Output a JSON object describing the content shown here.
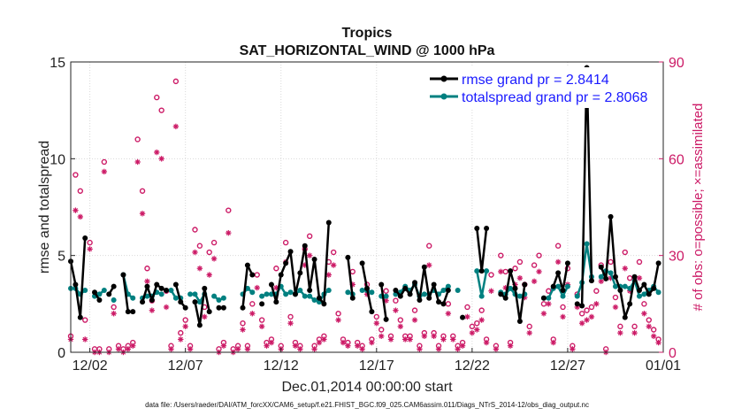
{
  "chart_data": {
    "type": "line",
    "title": "Tropics",
    "subtitle": "SAT_HORIZONTAL_WIND @ 1000 hPa",
    "xlabel": "Dec.01,2014 00:00:00 start",
    "ylabel": "rmse and totalspread",
    "y2label": "# of obs: o=possible; ×=assimilated",
    "footnote": "data file: /Users/raeder/DAI/ATM_forcXX/CAM6_setup/f.e21.FHIST_BGC.f09_025.CAM6assim.011/Diags_NTrS_2014-12/obs_diag_output.nc",
    "xlim": [
      0,
      31
    ],
    "ylim": [
      0,
      15
    ],
    "y2lim": [
      0,
      90
    ],
    "xticks": [
      1,
      6,
      11,
      16,
      21,
      26,
      31
    ],
    "xticklabels": [
      "12/02",
      "12/07",
      "12/12",
      "12/17",
      "12/22",
      "12/27",
      "01/01"
    ],
    "yticks": [
      0,
      5,
      10,
      15
    ],
    "yticklabels": [
      "0",
      "5",
      "10",
      "15"
    ],
    "y2ticks": [
      0,
      30,
      60,
      90
    ],
    "y2ticklabels": [
      "0",
      "30",
      "60",
      "90"
    ],
    "grid": true,
    "legend_position": "top-right",
    "legend": [
      "rmse grand pr = 2.8414",
      "totalspread grand pr = 2.8068"
    ],
    "colors": {
      "rmse": "#000000",
      "spread": "#008080",
      "obs": "#cc1a66",
      "legend_text": "#1a1aff"
    },
    "series": [
      {
        "name": "rmse",
        "x": [
          0.0,
          0.25,
          0.5,
          0.75,
          1.0,
          1.25,
          1.5,
          1.75,
          2.0,
          2.25,
          2.5,
          2.75,
          3.0,
          3.25,
          3.5,
          3.75,
          4.0,
          4.25,
          4.5,
          4.75,
          5.0,
          5.25,
          5.5,
          5.75,
          6.0,
          6.25,
          6.5,
          6.75,
          7.0,
          7.25,
          7.5,
          7.75,
          8.0,
          8.25,
          8.5,
          8.75,
          9.0,
          9.25,
          9.5,
          9.75,
          10.0,
          10.25,
          10.5,
          10.75,
          11.0,
          11.25,
          11.5,
          11.75,
          12.0,
          12.25,
          12.5,
          12.75,
          13.0,
          13.25,
          13.5,
          13.75,
          14.0,
          14.25,
          14.5,
          14.75,
          15.0,
          15.25,
          15.5,
          15.75,
          16.0,
          16.25,
          16.5,
          16.75,
          17.0,
          17.25,
          17.5,
          17.75,
          18.0,
          18.25,
          18.5,
          18.75,
          19.0,
          19.25,
          19.5,
          19.75,
          20.0,
          20.25,
          20.5,
          20.75,
          21.0,
          21.25,
          21.5,
          21.75,
          22.0,
          22.25,
          22.5,
          22.75,
          23.0,
          23.25,
          23.5,
          23.75,
          24.0,
          24.25,
          24.5,
          24.75,
          25.0,
          25.25,
          25.5,
          25.75,
          26.0,
          26.25,
          26.5,
          26.75,
          27.0,
          27.25,
          27.5,
          27.75,
          28.0,
          28.25,
          28.5,
          28.75,
          29.0,
          29.25,
          29.5,
          29.75,
          30.0,
          30.25,
          30.5,
          30.75
        ],
        "values": [
          4.7,
          3.5,
          1.8,
          5.9,
          null,
          3.1,
          2.7,
          null,
          3.0,
          3.4,
          null,
          4.0,
          2.1,
          2.1,
          null,
          2.6,
          3.4,
          2.7,
          3.5,
          3.3,
          3.2,
          null,
          3.5,
          2.6,
          2.3,
          null,
          2.6,
          1.4,
          3.3,
          2.1,
          null,
          2.3,
          2.3,
          null,
          null,
          null,
          2.3,
          4.5,
          4.0,
          null,
          2.5,
          null,
          3.5,
          2.6,
          4.0,
          4.6,
          5.2,
          3.0,
          4.1,
          5.5,
          3.2,
          4.8,
          2.8,
          2.5,
          6.7,
          null,
          null,
          null,
          4.9,
          2.8,
          null,
          4.6,
          3.3,
          2.1,
          null,
          3.5,
          1.7,
          null,
          3.2,
          2.9,
          3.3,
          3.0,
          3.6,
          2.7,
          4.4,
          2.8,
          3.5,
          2.6,
          2.5,
          3.2,
          null,
          null,
          1.8,
          null,
          null,
          6.4,
          4.2,
          6.4,
          null,
          null,
          3.0,
          2.8,
          4.2,
          3.3,
          1.6,
          3.5,
          null,
          null,
          null,
          2.8,
          null,
          3.4,
          4.1,
          3.2,
          4.6,
          null,
          2.5,
          2.4,
          14.7,
          3.7,
          null,
          4.4,
          3.8,
          7.0,
          3.9,
          3.2,
          1.8,
          2.5,
          3.9,
          3.2,
          3.5,
          3.0,
          3.3,
          4.6
        ]
      },
      {
        "name": "totalspread",
        "x": [
          0.0,
          0.25,
          0.5,
          0.75,
          1.0,
          1.25,
          1.5,
          1.75,
          2.0,
          2.25,
          2.5,
          2.75,
          3.0,
          3.25,
          3.5,
          3.75,
          4.0,
          4.25,
          4.5,
          4.75,
          5.0,
          5.25,
          5.5,
          5.75,
          6.0,
          6.25,
          6.5,
          6.75,
          7.0,
          7.25,
          7.5,
          7.75,
          8.0,
          8.25,
          8.5,
          8.75,
          9.0,
          9.25,
          9.5,
          9.75,
          10.0,
          10.25,
          10.5,
          10.75,
          11.0,
          11.25,
          11.5,
          11.75,
          12.0,
          12.25,
          12.5,
          12.75,
          13.0,
          13.25,
          13.5,
          13.75,
          14.0,
          14.25,
          14.5,
          14.75,
          15.0,
          15.25,
          15.5,
          15.75,
          16.0,
          16.25,
          16.5,
          16.75,
          17.0,
          17.25,
          17.5,
          17.75,
          18.0,
          18.25,
          18.5,
          18.75,
          19.0,
          19.25,
          19.5,
          19.75,
          20.0,
          20.25,
          20.5,
          20.75,
          21.0,
          21.25,
          21.5,
          21.75,
          22.0,
          22.25,
          22.5,
          22.75,
          23.0,
          23.25,
          23.5,
          23.75,
          24.0,
          24.25,
          24.5,
          24.75,
          25.0,
          25.25,
          25.5,
          25.75,
          26.0,
          26.25,
          26.5,
          26.75,
          27.0,
          27.25,
          27.5,
          27.75,
          28.0,
          28.25,
          28.5,
          28.75,
          29.0,
          29.25,
          29.5,
          29.75,
          30.0,
          30.25,
          30.5,
          30.75
        ],
        "values": [
          3.3,
          3.3,
          3.0,
          3.2,
          null,
          2.9,
          3.0,
          3.2,
          null,
          2.7,
          null,
          4.0,
          3.0,
          2.8,
          null,
          2.8,
          2.9,
          2.9,
          3.1,
          3.0,
          null,
          3.2,
          2.8,
          2.8,
          null,
          3.0,
          3.0,
          2.6,
          3.0,
          null,
          2.9,
          2.7,
          2.8,
          null,
          null,
          null,
          3.0,
          3.3,
          3.1,
          null,
          2.9,
          3.0,
          3.0,
          3.0,
          3.4,
          3.0,
          3.1,
          3.0,
          3.2,
          2.9,
          2.9,
          2.7,
          2.6,
          3.0,
          3.2,
          null,
          null,
          null,
          3.1,
          3.0,
          null,
          3.2,
          3.2,
          3.1,
          null,
          2.9,
          2.9,
          null,
          3.0,
          3.1,
          3.4,
          3.2,
          3.5,
          2.9,
          3.0,
          3.0,
          3.2,
          3.0,
          3.2,
          3.4,
          null,
          3.2,
          null,
          null,
          null,
          4.2,
          2.9,
          4.2,
          null,
          null,
          3.1,
          3.0,
          3.3,
          3.0,
          2.9,
          3.0,
          null,
          null,
          null,
          2.8,
          2.8,
          3.3,
          3.4,
          2.9,
          3.4,
          null,
          2.9,
          3.6,
          5.6,
          3.9,
          null,
          3.9,
          4.2,
          4.1,
          3.4,
          3.4,
          3.4,
          3.3,
          3.7,
          2.9,
          3.0,
          3.2,
          3.4,
          3.1
        ]
      },
      {
        "name": "obs_possible",
        "x": [
          0.0,
          0.25,
          0.5,
          0.75,
          1.0,
          1.25,
          1.5,
          1.75,
          2.0,
          2.25,
          2.5,
          2.75,
          3.0,
          3.25,
          3.5,
          3.75,
          4.0,
          4.25,
          4.5,
          4.75,
          5.0,
          5.25,
          5.5,
          5.75,
          6.0,
          6.25,
          6.5,
          6.75,
          7.0,
          7.25,
          7.5,
          7.75,
          8.0,
          8.25,
          8.5,
          8.75,
          9.0,
          9.25,
          9.5,
          9.75,
          10.0,
          10.25,
          10.5,
          10.75,
          11.0,
          11.25,
          11.5,
          11.75,
          12.0,
          12.25,
          12.5,
          12.75,
          13.0,
          13.25,
          13.5,
          13.75,
          14.0,
          14.25,
          14.5,
          14.75,
          15.0,
          15.25,
          15.5,
          15.75,
          16.0,
          16.25,
          16.5,
          16.75,
          17.0,
          17.25,
          17.5,
          17.75,
          18.0,
          18.25,
          18.5,
          18.75,
          19.0,
          19.25,
          19.5,
          19.75,
          20.0,
          20.25,
          20.5,
          20.75,
          21.0,
          21.25,
          21.5,
          21.75,
          22.0,
          22.25,
          22.5,
          22.75,
          23.0,
          23.25,
          23.5,
          23.75,
          24.0,
          24.25,
          24.5,
          24.75,
          25.0,
          25.25,
          25.5,
          25.75,
          26.0,
          26.25,
          26.5,
          26.75,
          27.0,
          27.25,
          27.5,
          27.75,
          28.0,
          28.25,
          28.5,
          28.75,
          29.0,
          29.25,
          29.5,
          29.75,
          30.0,
          30.25,
          30.5,
          30.75
        ],
        "values": [
          5,
          55,
          50,
          10,
          34,
          1,
          1,
          59,
          1,
          14,
          2,
          1,
          2,
          3,
          66,
          50,
          26,
          16,
          79,
          75,
          19,
          2,
          84,
          6,
          10,
          2,
          38,
          33,
          14,
          31,
          34,
          1,
          3,
          44,
          1,
          2,
          9,
          2,
          15,
          24,
          10,
          3,
          4,
          26,
          2,
          34,
          11,
          3,
          2,
          32,
          36,
          2,
          4,
          5,
          28,
          31,
          12,
          4,
          3,
          25,
          3,
          2,
          21,
          4,
          11,
          7,
          19,
          5,
          16,
          10,
          5,
          5,
          13,
          2,
          6,
          33,
          6,
          2,
          5,
          15,
          5,
          2,
          3,
          14,
          8,
          9,
          13,
          4,
          24,
          2,
          30,
          25,
          3,
          26,
          28,
          21,
          8,
          27,
          30,
          15,
          19,
          4,
          33,
          14,
          26,
          2,
          18,
          12,
          13,
          14,
          19,
          27,
          1,
          28,
          17,
          8,
          31,
          23,
          8,
          28,
          15,
          10,
          7,
          4
        ]
      },
      {
        "name": "obs_assimilated",
        "x": [
          0.0,
          0.25,
          0.5,
          0.75,
          1.0,
          1.25,
          1.5,
          1.75,
          2.0,
          2.25,
          2.5,
          2.75,
          3.0,
          3.25,
          3.5,
          3.75,
          4.0,
          4.25,
          4.5,
          4.75,
          5.0,
          5.25,
          5.5,
          5.75,
          6.0,
          6.25,
          6.5,
          6.75,
          7.0,
          7.25,
          7.5,
          7.75,
          8.0,
          8.25,
          8.5,
          8.75,
          9.0,
          9.25,
          9.5,
          9.75,
          10.0,
          10.25,
          10.5,
          10.75,
          11.0,
          11.25,
          11.5,
          11.75,
          12.0,
          12.25,
          12.5,
          12.75,
          13.0,
          13.25,
          13.5,
          13.75,
          14.0,
          14.25,
          14.5,
          14.75,
          15.0,
          15.25,
          15.5,
          15.75,
          16.0,
          16.25,
          16.5,
          16.75,
          17.0,
          17.25,
          17.5,
          17.75,
          18.0,
          18.25,
          18.5,
          18.75,
          19.0,
          19.25,
          19.5,
          19.75,
          20.0,
          20.25,
          20.5,
          20.75,
          21.0,
          21.25,
          21.5,
          21.75,
          22.0,
          22.25,
          22.5,
          22.75,
          23.0,
          23.25,
          23.5,
          23.75,
          24.0,
          24.25,
          24.5,
          24.75,
          25.0,
          25.25,
          25.5,
          25.75,
          26.0,
          26.25,
          26.5,
          26.75,
          27.0,
          27.25,
          27.5,
          27.75,
          28.0,
          28.25,
          28.5,
          28.75,
          29.0,
          29.25,
          29.5,
          29.75,
          30.0,
          30.25,
          30.5,
          30.75
        ],
        "values": [
          4,
          44,
          42,
          4,
          32,
          0,
          0,
          56,
          0,
          12,
          1,
          0,
          1,
          2,
          59,
          43,
          22,
          13,
          62,
          60,
          14,
          1,
          70,
          4,
          8,
          1,
          31,
          26,
          11,
          24,
          29,
          0,
          2,
          37,
          0,
          1,
          7,
          1,
          12,
          20,
          8,
          2,
          3,
          20,
          1,
          28,
          9,
          2,
          1,
          27,
          30,
          1,
          3,
          4,
          24,
          27,
          10,
          3,
          2,
          21,
          2,
          1,
          18,
          3,
          9,
          5,
          16,
          4,
          13,
          8,
          4,
          4,
          10,
          1,
          5,
          27,
          5,
          1,
          4,
          12,
          4,
          1,
          2,
          11,
          6,
          7,
          10,
          3,
          19,
          1,
          25,
          20,
          2,
          21,
          23,
          17,
          6,
          22,
          25,
          12,
          15,
          3,
          28,
          11,
          21,
          1,
          14,
          9,
          10,
          11,
          15,
          22,
          0,
          23,
          14,
          6,
          26,
          19,
          6,
          23,
          12,
          8,
          5,
          3
        ]
      }
    ]
  }
}
